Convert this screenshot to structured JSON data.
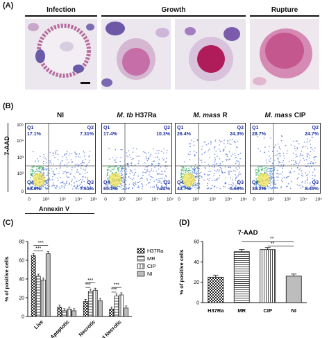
{
  "panelA": {
    "label": "(A)",
    "headers": [
      "Infection",
      "Growth",
      "Rupture"
    ]
  },
  "panelB": {
    "label": "(B)",
    "ylabel": "7-AAD",
    "xlabel": "Annexin V",
    "plots": [
      {
        "title_plain": "NI",
        "title_italic": "",
        "title_suffix": "",
        "q1": "17.1%",
        "q2": "7.31%",
        "q3": "7.61%",
        "q4": "68.0%"
      },
      {
        "title_plain": "",
        "title_italic": "M. tb",
        "title_suffix": " H37Ra",
        "q1": "17.4%",
        "q2": "10.3%",
        "q3": "7.22%",
        "q4": "65.1%"
      },
      {
        "title_plain": "",
        "title_italic": "M. mass",
        "title_suffix": " R",
        "q1": "26.4%",
        "q2": "24.3%",
        "q3": "5.69%",
        "q4": "43.7%"
      },
      {
        "title_plain": "",
        "title_italic": "M. mass",
        "title_suffix": " CIP",
        "q1": "28.7%",
        "q2": "24.7%",
        "q3": "8.45%",
        "q4": "38.2%"
      }
    ],
    "quadrant_names": [
      "Q1",
      "Q2",
      "Q3",
      "Q4"
    ],
    "tick_labels": [
      "0",
      "10²",
      "10³",
      "10⁴",
      "10⁵"
    ]
  },
  "chart_data": [
    {
      "type": "bar",
      "label": "(C)",
      "ylabel": "% of positive cells",
      "ylim": [
        0,
        80
      ],
      "yticks": [
        0,
        20,
        40,
        60,
        80
      ],
      "categories": [
        "Live",
        "Apoptotic",
        "Necrotic",
        "2nd Necrotic"
      ],
      "series": [
        {
          "name": "H37Ra",
          "values": [
            65,
            10,
            16,
            8
          ]
        },
        {
          "name": "MR",
          "values": [
            43,
            6,
            27,
            22
          ]
        },
        {
          "name": "CIP",
          "values": [
            39,
            8,
            28,
            23
          ]
        },
        {
          "name": "NI",
          "values": [
            67,
            6,
            17,
            9
          ]
        }
      ],
      "significance": [
        "***",
        "***",
        "***",
        "***",
        "***",
        "***"
      ]
    },
    {
      "type": "bar",
      "label": "(D)",
      "title": "7-AAD",
      "ylabel": "% of positive cells",
      "ylim": [
        0,
        60
      ],
      "yticks": [
        0,
        20,
        40,
        60
      ],
      "categories": [
        "H37Ra",
        "MR",
        "CIP",
        "NI"
      ],
      "values": [
        25,
        50,
        52,
        26
      ],
      "significance": [
        "**",
        "**"
      ]
    }
  ]
}
